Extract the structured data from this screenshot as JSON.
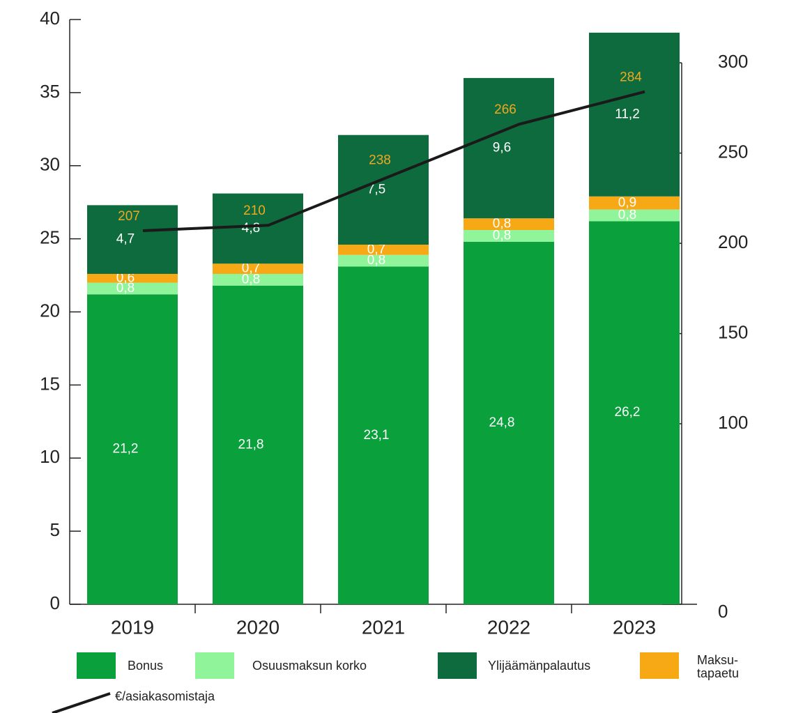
{
  "chart_data": {
    "type": "bar",
    "categories": [
      "2019",
      "2020",
      "2021",
      "2022",
      "2023"
    ],
    "series": [
      {
        "name": "Bonus",
        "color": "#0aa13c",
        "values": [
          21.2,
          21.8,
          23.1,
          24.8,
          26.2
        ],
        "value_labels": [
          "21,2",
          "21,8",
          "23,1",
          "24,8",
          "26,2"
        ]
      },
      {
        "name": "Osuusmaksun korko",
        "color": "#90f59a",
        "values": [
          0.8,
          0.8,
          0.8,
          0.8,
          0.8
        ],
        "value_labels": [
          "0,8",
          "0,8",
          "0,8",
          "0,8",
          "0,8"
        ]
      },
      {
        "name": "Ylijäämänpalautus",
        "color": "#0e6b3e",
        "values": [
          4.7,
          4.8,
          7.5,
          9.6,
          11.2
        ],
        "value_labels": [
          "4,7",
          "4,8",
          "7,5",
          "9,6",
          "11,2"
        ]
      },
      {
        "name": "Maksu-\ntapaetu",
        "color": "#f7a815",
        "values": [
          0.6,
          0.7,
          0.7,
          0.8,
          0.9
        ],
        "value_labels": [
          "0,6",
          "0,7",
          "0,7",
          "0,8",
          "0,9"
        ]
      },
      {
        "name": "€/asiakasomistaja",
        "type": "line",
        "axis": "y2",
        "color": "#1a1a1a",
        "label_color": "#f0a820",
        "values": [
          207,
          210,
          238,
          266,
          284
        ]
      }
    ],
    "ylim": [
      0,
      40
    ],
    "yticks": [
      0,
      5,
      10,
      15,
      20,
      25,
      30,
      35,
      40
    ],
    "y2lim": [
      0,
      324
    ],
    "y2ticks": [
      0,
      100,
      150,
      200,
      250,
      300
    ]
  }
}
